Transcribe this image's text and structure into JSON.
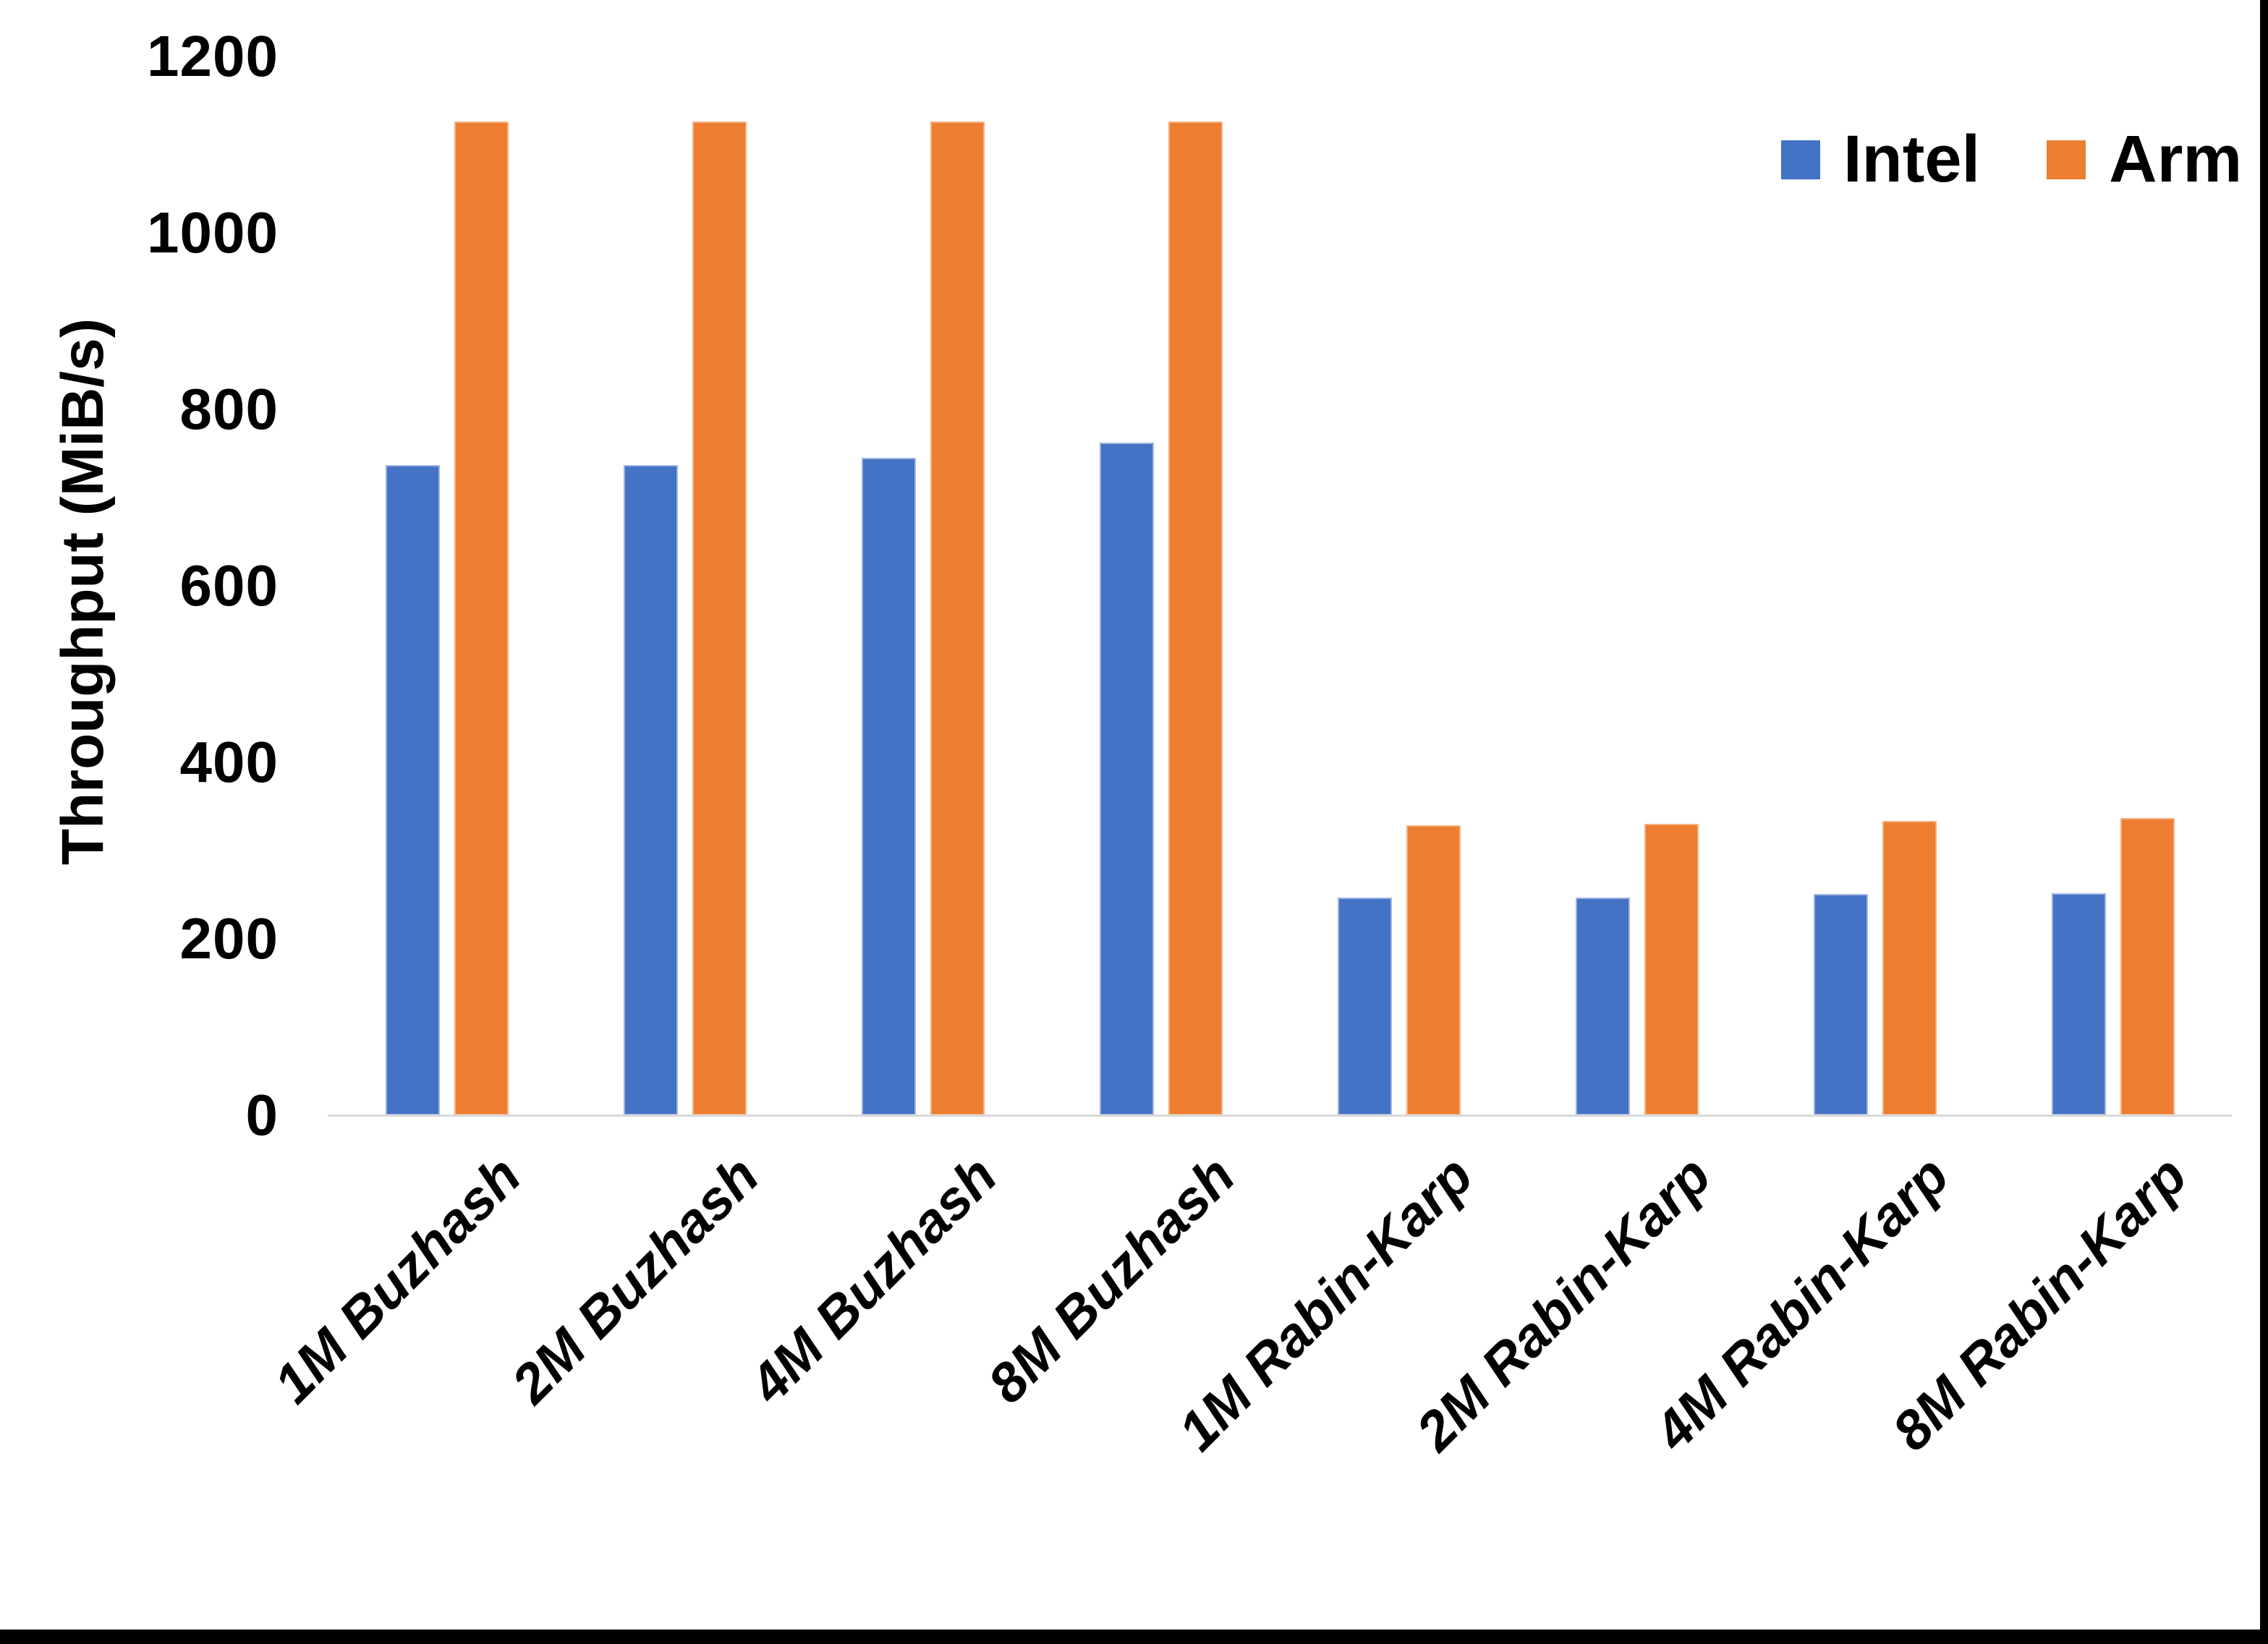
{
  "chart_data": {
    "type": "bar",
    "title": "",
    "categories": [
      "1M Buzhash",
      "2M Buzhash",
      "4M Buzhash",
      "8M Buzhash",
      "1M Rabin-Karp",
      "2M Rabin-Karp",
      "4M Rabin-Karp",
      "8M Rabin-Karp"
    ],
    "series": [
      {
        "name": "Intel",
        "color": "#4472C4",
        "values": [
          737,
          737,
          745,
          762,
          247,
          247,
          251,
          252
        ]
      },
      {
        "name": "Arm",
        "color": "#ED7D31",
        "values": [
          1126,
          1126,
          1126,
          1126,
          329,
          330,
          334,
          337
        ]
      }
    ],
    "xlabel": "",
    "ylabel": "Throughput (MiB/s)",
    "ylim": [
      0,
      1200
    ],
    "yticks": [
      0,
      200,
      400,
      600,
      800,
      1000,
      1200
    ],
    "grid": false,
    "legend_position": "top-right",
    "axis_line_color": "#D9D9D9",
    "text_color": "#000000"
  },
  "legend": {
    "items": [
      {
        "label": "Intel",
        "color": "#4472C4"
      },
      {
        "label": "Arm",
        "color": "#ED7D31"
      }
    ]
  },
  "axes": {
    "y_title": "Throughput (MiB/s)",
    "y_tick_labels": [
      "0",
      "200",
      "400",
      "600",
      "800",
      "1000",
      "1200"
    ],
    "x_tick_labels": [
      "1M Buzhash",
      "2M Buzhash",
      "4M Buzhash",
      "8M Buzhash",
      "1M Rabin-Karp",
      "2M Rabin-Karp",
      "4M Rabin-Karp",
      "8M Rabin-Karp"
    ]
  }
}
